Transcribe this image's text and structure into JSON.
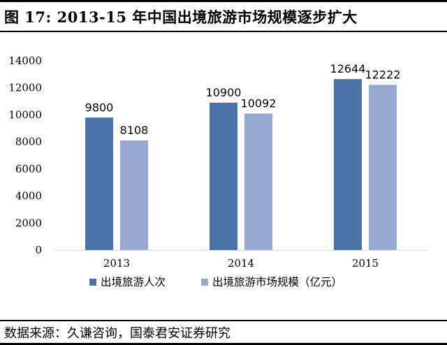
{
  "figure": {
    "number": "图 17:",
    "title": "2013-15 年中国出境旅游市场规模逐步扩大",
    "source": "数据来源：久谦咨询，国泰君安证券研究"
  },
  "chart_data": {
    "type": "bar",
    "categories": [
      "2013",
      "2014",
      "2015"
    ],
    "series": [
      {
        "name": "出境旅游人次",
        "values": [
          9800,
          10900,
          12644
        ],
        "color": "#4A73A8"
      },
      {
        "name": "出境旅游市场规模（亿元）",
        "values": [
          8108,
          10092,
          12222
        ],
        "color": "#95A9D3"
      }
    ],
    "ylim": [
      0,
      14000
    ],
    "yticks": [
      0,
      2000,
      4000,
      6000,
      8000,
      10000,
      12000,
      14000
    ],
    "grid": false,
    "legend": "bottom",
    "data_labels": true
  }
}
